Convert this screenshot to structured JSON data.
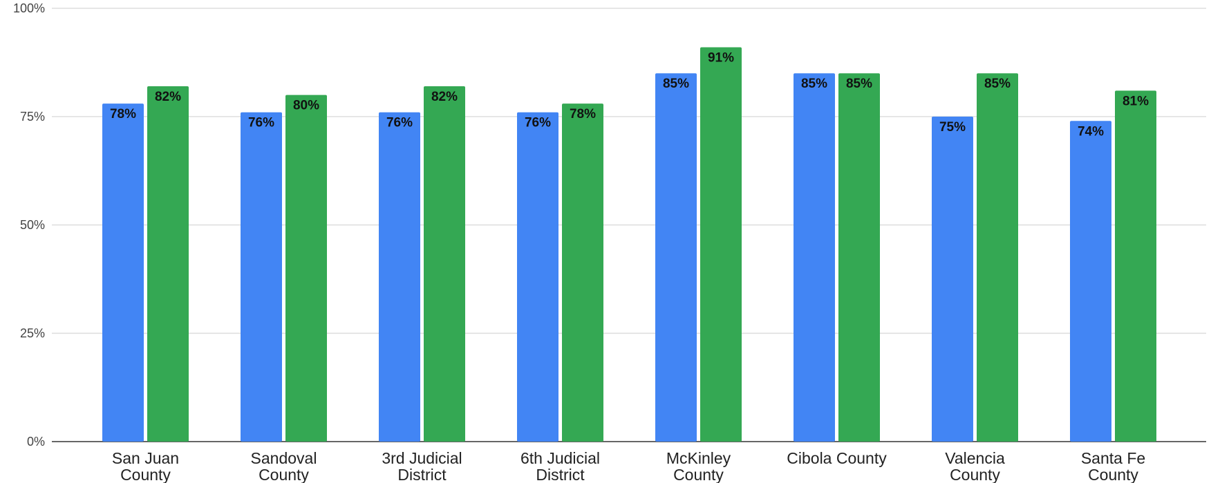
{
  "chart_data": {
    "type": "bar",
    "title": "",
    "xlabel": "",
    "ylabel": "",
    "ylim": [
      0,
      100
    ],
    "yticks": [
      "0%",
      "25%",
      "50%",
      "75%",
      "100%"
    ],
    "ytick_values": [
      0,
      25,
      50,
      75,
      100
    ],
    "grid": true,
    "categories": [
      [
        "San Juan",
        "County"
      ],
      [
        "Sandoval",
        "County"
      ],
      [
        "3rd Judicial",
        "District"
      ],
      [
        "6th Judicial",
        "District"
      ],
      [
        "McKinley",
        "County"
      ],
      [
        "Cibola County"
      ],
      [
        "Valencia",
        "County"
      ],
      [
        "Santa Fe",
        "County"
      ]
    ],
    "series": [
      {
        "color": "#4285f4",
        "values": [
          78,
          76,
          76,
          76,
          85,
          85,
          75,
          74
        ],
        "labels": [
          "78%",
          "76%",
          "76%",
          "76%",
          "85%",
          "85%",
          "75%",
          "74%"
        ]
      },
      {
        "color": "#34a853",
        "values": [
          82,
          80,
          82,
          78,
          91,
          85,
          85,
          81
        ],
        "labels": [
          "82%",
          "80%",
          "82%",
          "78%",
          "91%",
          "85%",
          "85%",
          "81%"
        ]
      }
    ]
  }
}
